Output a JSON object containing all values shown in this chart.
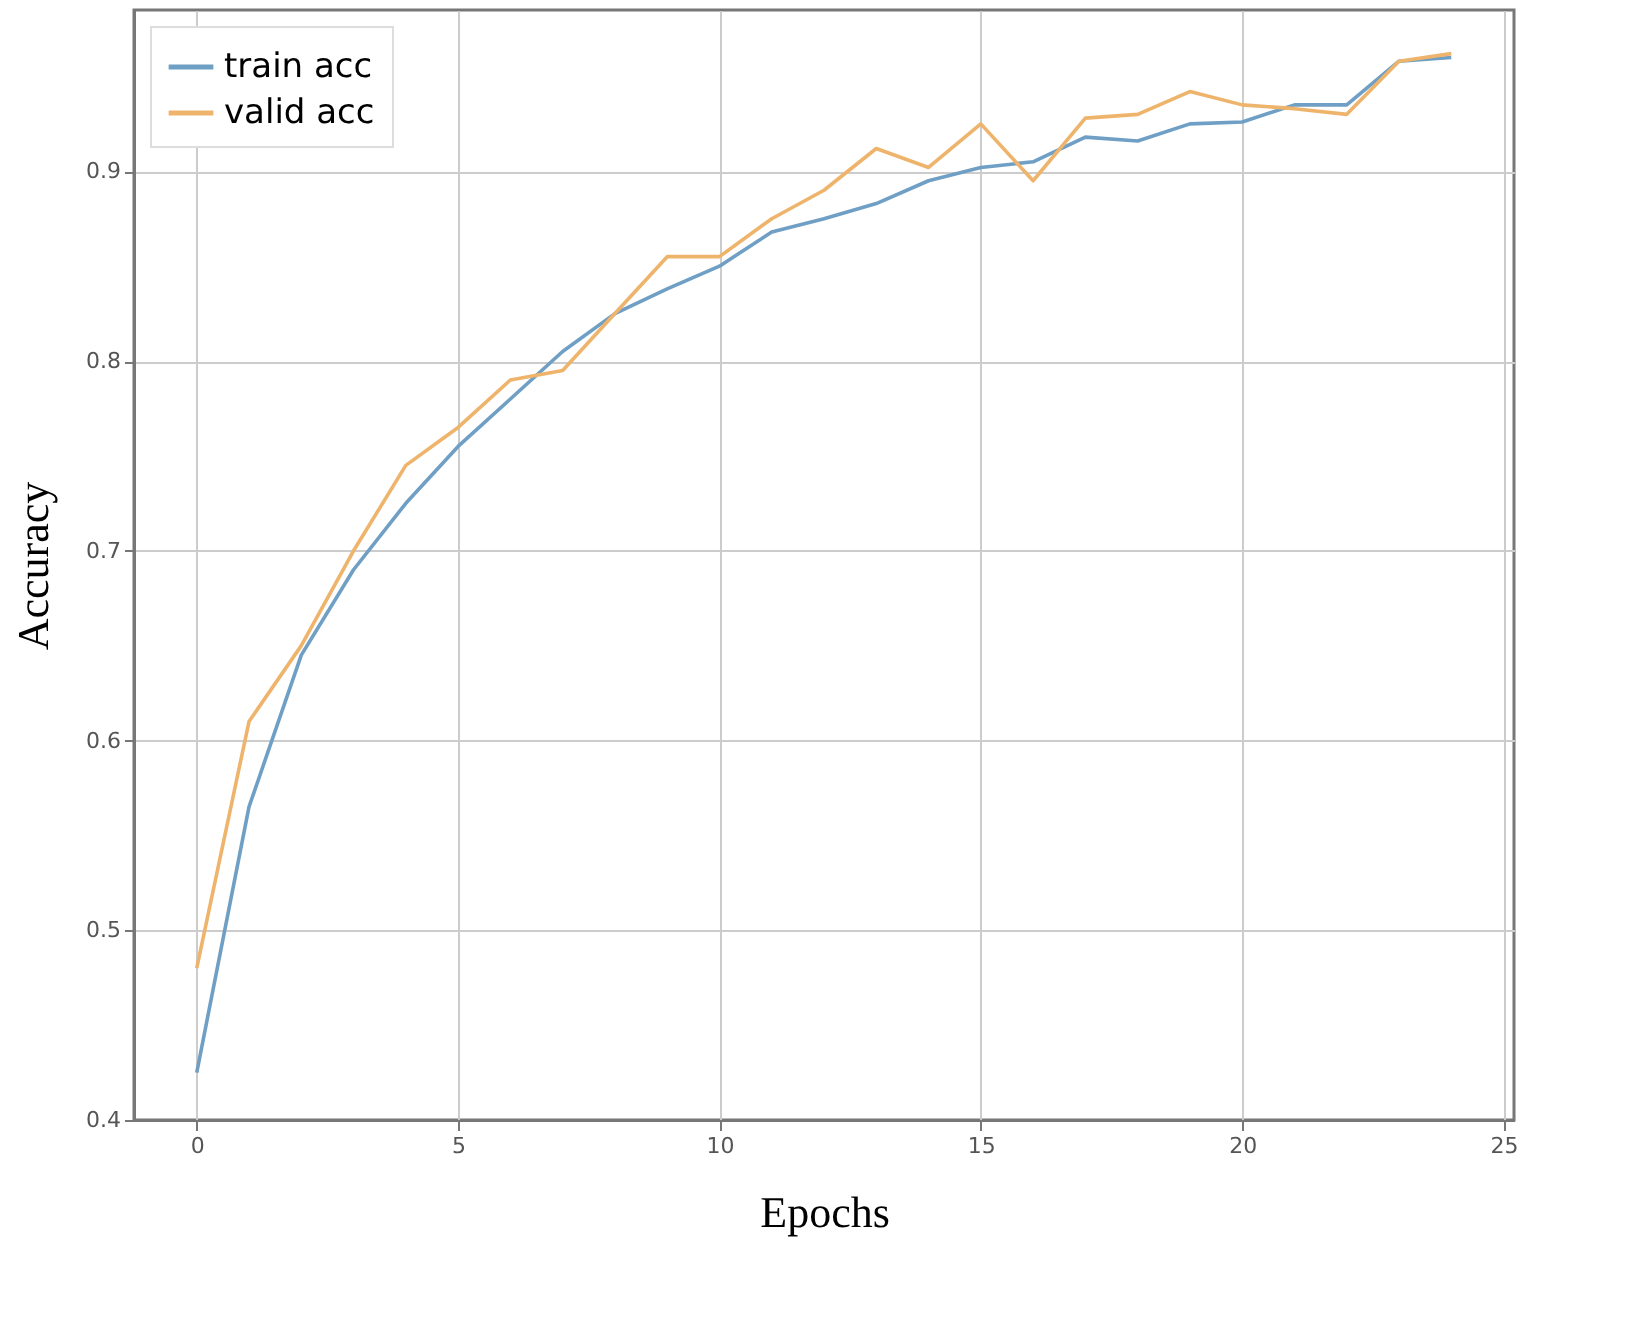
{
  "chart_data": {
    "type": "line",
    "xlabel": "Epochs",
    "ylabel": "Accuracy",
    "x": [
      0,
      1,
      2,
      3,
      4,
      5,
      6,
      7,
      8,
      9,
      10,
      11,
      12,
      13,
      14,
      15,
      16,
      17,
      18,
      19,
      20,
      21,
      22,
      23,
      24
    ],
    "series": [
      {
        "name": "train acc",
        "color": "#6f9fc4",
        "values": [
          0.425,
          0.565,
          0.645,
          0.69,
          0.725,
          0.755,
          0.78,
          0.805,
          0.825,
          0.838,
          0.85,
          0.868,
          0.875,
          0.883,
          0.895,
          0.902,
          0.905,
          0.918,
          0.916,
          0.925,
          0.926,
          0.935,
          0.935,
          0.958,
          0.96
        ]
      },
      {
        "name": "valid acc",
        "color": "#eeb46c",
        "values": [
          0.48,
          0.61,
          0.65,
          0.7,
          0.745,
          0.765,
          0.79,
          0.795,
          0.825,
          0.855,
          0.855,
          0.875,
          0.89,
          0.912,
          0.902,
          0.925,
          0.895,
          0.928,
          0.93,
          0.942,
          0.935,
          0.933,
          0.93,
          0.958,
          0.962
        ]
      }
    ],
    "xlim": [
      -1.2,
      25.2
    ],
    "xticks": [
      0,
      5,
      10,
      15,
      20,
      25
    ],
    "ylim": [
      0.4,
      0.985
    ],
    "yticks": [
      0.4,
      0.5,
      0.6,
      0.7,
      0.8,
      0.9
    ],
    "grid": true,
    "legend": "top left",
    "marker": "none",
    "line_style": "solid"
  }
}
